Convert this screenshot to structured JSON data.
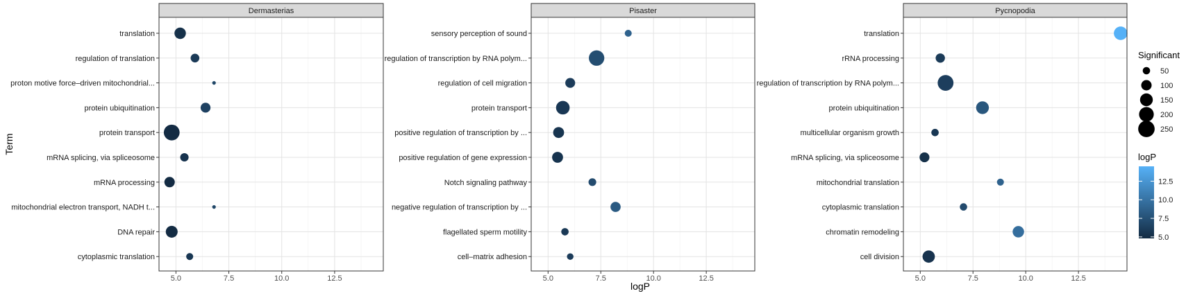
{
  "chart_data": {
    "type": "scatter",
    "xlabel": "logP",
    "ylabel": "Term",
    "xlim": [
      4.2,
      14.8
    ],
    "x_ticks": [
      5,
      7.5,
      10,
      12.5
    ],
    "x_tick_labels": [
      "5.0",
      "7.5",
      "10.0",
      "12.5"
    ],
    "grid": true,
    "legend_position": "right",
    "legend_size": {
      "title": "Significant",
      "values": [
        50,
        100,
        150,
        200,
        250
      ],
      "labels": [
        "50",
        "100",
        "150",
        "200",
        "250"
      ]
    },
    "legend_color": {
      "title": "logP",
      "range": [
        4.8,
        14.5
      ],
      "ticks": [
        5,
        7.5,
        10,
        12.5
      ],
      "tick_labels": [
        "5.0",
        "7.5",
        "10.0",
        "12.5"
      ],
      "low_color": "#132B43",
      "high_color": "#56B1F7"
    },
    "panels": [
      {
        "title": "Dermasterias",
        "terms": [
          "translation",
          "regulation of translation",
          "proton motive force–driven mitochondrial...",
          "protein ubiquitination",
          "protein transport",
          "mRNA splicing, via spliceosome",
          "mRNA processing",
          "mitochondrial electron transport, NADH t...",
          "DNA repair",
          "cytoplasmic translation"
        ],
        "logP": [
          5.2,
          5.9,
          6.8,
          6.4,
          4.8,
          5.4,
          4.7,
          6.8,
          4.8,
          5.65
        ],
        "significant": [
          120,
          70,
          12,
          90,
          230,
          65,
          100,
          12,
          130,
          45
        ]
      },
      {
        "title": "Pisaster",
        "terms": [
          "sensory perception of sound",
          "regulation of transcription by RNA polym...",
          "regulation of cell migration",
          "protein transport",
          "positive regulation of transcription by ...",
          "positive regulation of gene expression",
          "Notch signaling pathway",
          "negative regulation of transcription by ...",
          "flagellated sperm motility",
          "cell–matrix adhesion"
        ],
        "logP": [
          8.8,
          7.3,
          6.05,
          5.7,
          5.5,
          5.45,
          7.1,
          8.2,
          5.8,
          6.05
        ],
        "significant": [
          45,
          220,
          90,
          170,
          110,
          110,
          55,
          95,
          50,
          40
        ]
      },
      {
        "title": "Pycnopodia",
        "terms": [
          "translation",
          "rRNA processing",
          "regulation of transcription by RNA polym...",
          "protein ubiquitination",
          "multicellular organism growth",
          "mRNA splicing, via spliceosome",
          "mitochondrial translation",
          "cytoplasmic translation",
          "chromatin remodeling",
          "cell division"
        ],
        "logP": [
          14.5,
          5.95,
          6.2,
          7.95,
          5.7,
          5.2,
          8.8,
          7.05,
          9.65,
          5.4
        ],
        "significant": [
          170,
          80,
          230,
          150,
          50,
          90,
          45,
          50,
          120,
          140
        ]
      }
    ]
  }
}
